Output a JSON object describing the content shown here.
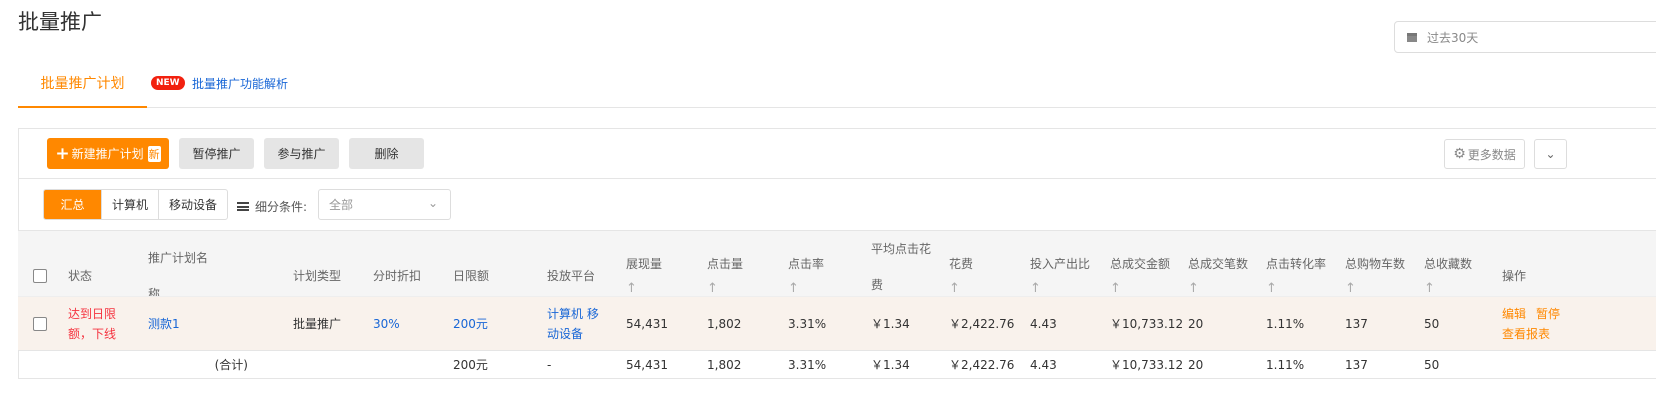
{
  "page": {
    "title": "批量推广",
    "date_range": "过去30天"
  },
  "tabs": {
    "active": "批量推广计划",
    "new_badge": "NEW",
    "link": "批量推广功能解析"
  },
  "toolbar": {
    "new_plan": "新建推广计划",
    "new_tag": "新",
    "pause": "暂停推广",
    "join": "参与推广",
    "delete": "删除",
    "more_data": "更多数据"
  },
  "filter": {
    "segments": [
      "汇总",
      "计算机",
      "移动设备"
    ],
    "active_segment": "汇总",
    "condition_label": "细分条件:",
    "condition_value": "全部"
  },
  "colors": {
    "accent": "#ff8800",
    "link": "#1866d6",
    "status_red": "#f5333f"
  },
  "table": {
    "columns": [
      {
        "label": "状态",
        "sortable": false
      },
      {
        "label": "推广计划名称",
        "sortable": false
      },
      {
        "label": "计划类型",
        "sortable": false
      },
      {
        "label": "分时折扣",
        "sortable": false
      },
      {
        "label": "日限额",
        "sortable": false
      },
      {
        "label": "投放平台",
        "sortable": false
      },
      {
        "label": "展现量",
        "sortable": true
      },
      {
        "label": "点击量",
        "sortable": true
      },
      {
        "label": "点击率",
        "sortable": true
      },
      {
        "label": "平均点击花费",
        "sortable": true
      },
      {
        "label": "花费",
        "sortable": true
      },
      {
        "label": "投入产出比",
        "sortable": true
      },
      {
        "label": "总成交金额",
        "sortable": true
      },
      {
        "label": "总成交笔数",
        "sortable": true
      },
      {
        "label": "点击转化率",
        "sortable": true
      },
      {
        "label": "总购物车数",
        "sortable": true
      },
      {
        "label": "总收藏数",
        "sortable": true
      },
      {
        "label": "操作",
        "sortable": false
      }
    ],
    "rows": [
      {
        "cells": [
          "达到日限额，下线",
          "测款1",
          "批量推广",
          "30%",
          "200元",
          "计算机 移动设备",
          "54,431",
          "1,802",
          "3.31%",
          "￥1.34",
          "￥2,422.76",
          "4.43",
          "￥10,733.12",
          "20",
          "1.11%",
          "137",
          "50"
        ],
        "actions": [
          "编辑",
          "暂停",
          "查看报表"
        ]
      }
    ],
    "total": {
      "label": "(合计)",
      "cells": [
        "",
        "",
        "",
        "",
        "200元",
        "-",
        "54,431",
        "1,802",
        "3.31%",
        "￥1.34",
        "￥2,422.76",
        "4.43",
        "￥10,733.12",
        "20",
        "1.11%",
        "137",
        "50"
      ]
    }
  }
}
